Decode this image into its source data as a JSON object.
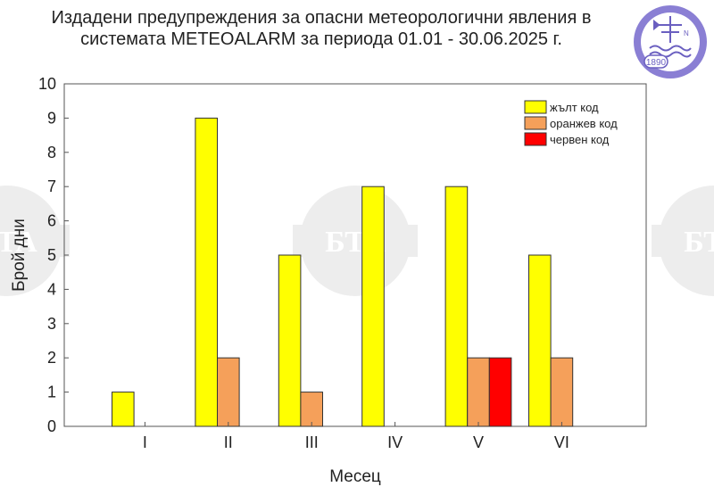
{
  "header": {
    "title_line1": "Издадени предупреждения за опасни метеорологични явления в",
    "title_line2": "системата METEOALARM за периода 01.01 - 30.06.2025 г."
  },
  "logo": {
    "year": "1890",
    "compass_label": "N"
  },
  "watermark": {
    "text": "БТА"
  },
  "colors": {
    "yellow": "#ffff00",
    "orange": "#f5a05a",
    "red": "#ff0000",
    "outline": "#333333",
    "logo_purple": "#8a7fd4"
  },
  "chart_data": {
    "type": "bar",
    "categories": [
      "I",
      "II",
      "III",
      "IV",
      "V",
      "VI"
    ],
    "series": [
      {
        "name": "жълт код",
        "color": "#ffff00",
        "values": [
          1,
          9,
          5,
          7,
          7,
          5
        ]
      },
      {
        "name": "оранжев код",
        "color": "#f5a05a",
        "values": [
          0,
          2,
          1,
          0,
          2,
          2
        ]
      },
      {
        "name": "червен код",
        "color": "#ff0000",
        "values": [
          0,
          0,
          0,
          0,
          2,
          0
        ]
      }
    ],
    "xlabel": "Месец",
    "ylabel": "Брой дни",
    "ylim": [
      0,
      10
    ],
    "yticks": [
      0,
      1,
      2,
      3,
      4,
      5,
      6,
      7,
      8,
      9,
      10
    ],
    "grid": false,
    "legend_position": "top-right"
  }
}
